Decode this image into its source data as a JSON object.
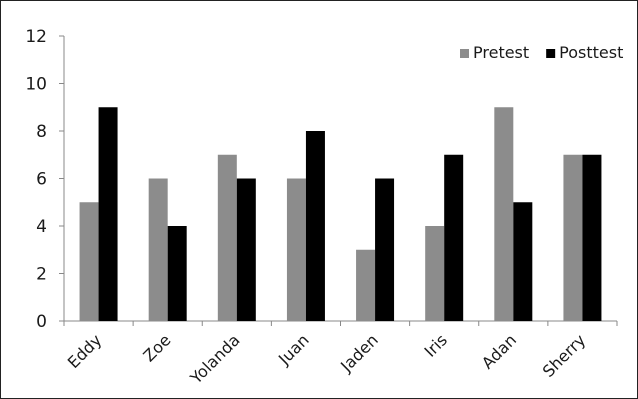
{
  "chart_data": {
    "type": "bar",
    "categories": [
      "Eddy",
      "Zoe",
      "Yolanda",
      "Juan",
      "Jaden",
      "Iris",
      "Adan",
      "Sherry"
    ],
    "series": [
      {
        "name": "Pretest",
        "values": [
          5,
          6,
          7,
          6,
          3,
          4,
          9,
          7
        ],
        "color": "#8c8c8c"
      },
      {
        "name": "Posttest",
        "values": [
          9,
          4,
          6,
          8,
          6,
          7,
          5,
          7
        ],
        "color": "#000000"
      }
    ],
    "ylim": [
      0,
      12
    ],
    "yticks": [
      0,
      2,
      4,
      6,
      8,
      10,
      12
    ],
    "grid": false,
    "legend_position": "top-right",
    "title": "",
    "xlabel": "",
    "ylabel": ""
  }
}
